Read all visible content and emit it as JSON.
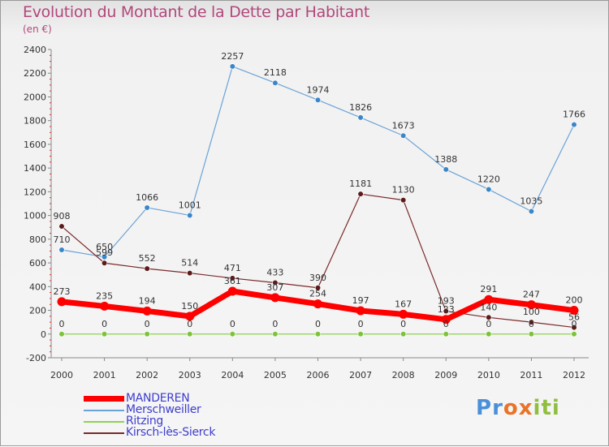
{
  "title": "Evolution du Montant de la Dette par Habitant",
  "subtitle": "(en €)",
  "chart_data": {
    "type": "line",
    "title": "Evolution du Montant de la Dette par Habitant",
    "ylabel": "(en €)",
    "xlabel": "",
    "x": [
      "2000",
      "2001",
      "2002",
      "2003",
      "2004",
      "2005",
      "2006",
      "2007",
      "2008",
      "2009",
      "2010",
      "2011",
      "2012"
    ],
    "ylim": [
      -200,
      2400
    ],
    "yticks": [
      -200,
      0,
      200,
      400,
      600,
      800,
      1000,
      1200,
      1400,
      1600,
      1800,
      2000,
      2200,
      2400
    ],
    "grid": false,
    "legend": "bottom",
    "series": [
      {
        "name": "MANDEREN",
        "color": "#ff0000",
        "values": [
          273,
          235,
          194,
          150,
          361,
          307,
          254,
          197,
          167,
          123,
          291,
          247,
          200
        ]
      },
      {
        "name": "Merschweiller",
        "color": "#6ba3d6",
        "values": [
          710,
          650,
          1066,
          1001,
          2257,
          2118,
          1974,
          1826,
          1673,
          1388,
          1220,
          1035,
          1766
        ]
      },
      {
        "name": "Ritzing",
        "color": "#8fd14f",
        "values": [
          0,
          0,
          0,
          0,
          0,
          0,
          0,
          0,
          0,
          0,
          0,
          0,
          0
        ]
      },
      {
        "name": "Kirsch-lès-Sierck",
        "color": "#7a2a2a",
        "values": [
          908,
          599,
          552,
          514,
          471,
          433,
          390,
          1181,
          1130,
          193,
          140,
          100,
          56
        ]
      }
    ]
  },
  "legend": {
    "items": [
      {
        "label": "MANDEREN",
        "color": "#ff0000"
      },
      {
        "label": "Merschweiller",
        "color": "#6ba3d6"
      },
      {
        "label": "Ritzing",
        "color": "#8fd14f"
      },
      {
        "label": "Kirsch-lès-Sierck",
        "color": "#7a2a2a"
      }
    ]
  },
  "logo": {
    "letters": [
      "P",
      "r",
      "o",
      "x",
      "i",
      "t",
      "i"
    ],
    "colors": [
      "#4a90d9",
      "#4a90d9",
      "#e8742a",
      "#e8742a",
      "#8fbf3f",
      "#8fbf3f",
      "#8fbf3f"
    ]
  }
}
